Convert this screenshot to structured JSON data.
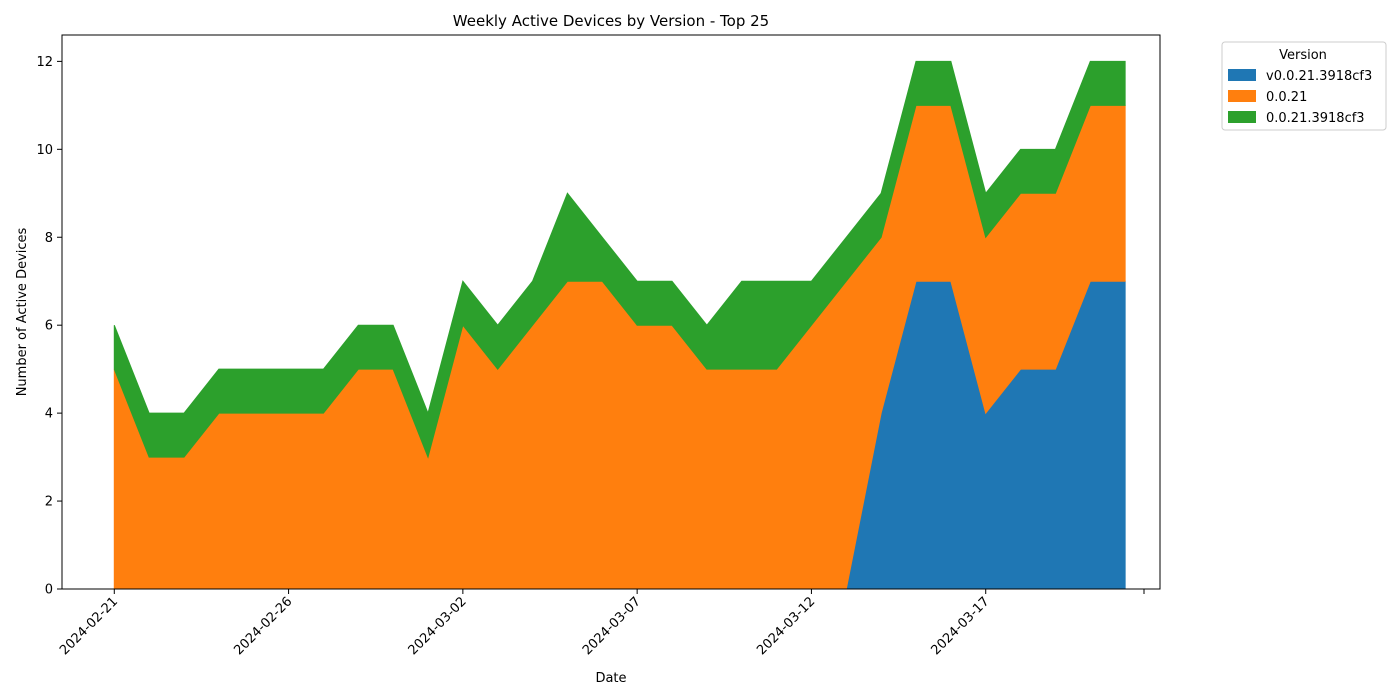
{
  "chart_data": {
    "type": "area",
    "stacked": true,
    "title": "Weekly Active Devices by Version - Top 25",
    "xlabel": "Date",
    "ylabel": "Number of Active Devices",
    "x": [
      "2024-02-21",
      "2024-02-22",
      "2024-02-23",
      "2024-02-24",
      "2024-02-25",
      "2024-02-26",
      "2024-02-27",
      "2024-02-28",
      "2024-02-29",
      "2024-03-01",
      "2024-03-02",
      "2024-03-03",
      "2024-03-04",
      "2024-03-05",
      "2024-03-06",
      "2024-03-07",
      "2024-03-08",
      "2024-03-09",
      "2024-03-10",
      "2024-03-11",
      "2024-03-12",
      "2024-03-13",
      "2024-03-14",
      "2024-03-15",
      "2024-03-16",
      "2024-03-17",
      "2024-03-18",
      "2024-03-19",
      "2024-03-20",
      "2024-03-21"
    ],
    "x_ticks": [
      "2024-02-21",
      "2024-02-26",
      "2024-03-02",
      "2024-03-07",
      "2024-03-12",
      "2024-03-17"
    ],
    "xlim": [
      "2024-02-19.5",
      "2024-03-22"
    ],
    "ylim": [
      0,
      12.6
    ],
    "y_ticks": [
      0,
      2,
      4,
      6,
      8,
      10,
      12
    ],
    "grid": false,
    "legend_title": "Version",
    "legend_position": "outside-top-right",
    "series": [
      {
        "name": "v0.0.21.3918cf3",
        "color": "#1f77b4",
        "values": [
          0,
          0,
          0,
          0,
          0,
          0,
          0,
          0,
          0,
          0,
          0,
          0,
          0,
          0,
          0,
          0,
          0,
          0,
          0,
          0,
          0,
          0,
          4,
          7,
          7,
          4,
          5,
          5,
          7,
          7
        ]
      },
      {
        "name": "0.0.21",
        "color": "#ff7f0e",
        "values": [
          5,
          3,
          3,
          4,
          4,
          4,
          4,
          5,
          5,
          3,
          6,
          5,
          6,
          7,
          7,
          6,
          6,
          5,
          5,
          5,
          6,
          7,
          4,
          4,
          4,
          4,
          4,
          4,
          4,
          4
        ]
      },
      {
        "name": "0.0.21.3918cf3",
        "color": "#2ca02c",
        "values": [
          1,
          1,
          1,
          1,
          1,
          1,
          1,
          1,
          1,
          1,
          1,
          1,
          1,
          2,
          1,
          1,
          1,
          1,
          2,
          2,
          1,
          1,
          1,
          1,
          1,
          1,
          1,
          1,
          1,
          1
        ]
      }
    ]
  }
}
